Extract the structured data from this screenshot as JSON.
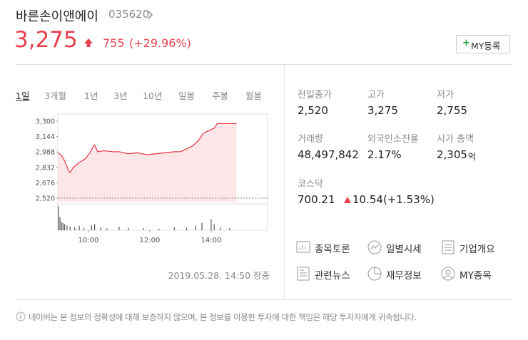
{
  "header": {
    "name": "바른손이앤에이",
    "code": "035620"
  },
  "price": {
    "current": "3,275",
    "change": "755",
    "change_rate": "(+29.96%)"
  },
  "my_button": "MY등록",
  "tabs": [
    "1일",
    "3개월",
    "1년",
    "3년",
    "10년",
    "일봉",
    "주봉",
    "월봉"
  ],
  "chart_data": {
    "type": "line",
    "x": [
      9.0,
      9.1,
      9.15,
      9.25,
      9.35,
      9.4,
      9.5,
      9.7,
      9.9,
      10.05,
      10.15,
      10.2,
      10.3,
      10.5,
      10.8,
      11.0,
      11.3,
      11.6,
      11.9,
      12.2,
      12.5,
      12.8,
      13.0,
      13.2,
      13.4,
      13.6,
      13.75,
      13.9,
      14.1,
      14.2,
      14.5,
      14.83
    ],
    "series": [
      {
        "color": "#e8414e",
        "values": [
          2980,
          2960,
          2940,
          2880,
          2800,
          2780,
          2830,
          2880,
          2920,
          2980,
          3040,
          3060,
          2990,
          3000,
          2990,
          2990,
          2970,
          2980,
          2960,
          2970,
          2980,
          2990,
          2990,
          3020,
          3050,
          3110,
          3180,
          3200,
          3230,
          3275,
          3275,
          3275
        ]
      }
    ],
    "fill_color": "#fde6e8",
    "prev_close": 2520,
    "xlim": [
      9,
      15.84
    ],
    "ylim": [
      2484,
      3372
    ],
    "yticks": [
      {
        "value": 3300,
        "label": "3,300"
      },
      {
        "value": 3144,
        "label": "3,144"
      },
      {
        "value": 2988,
        "label": "2,988"
      },
      {
        "value": 2832,
        "label": "2,832"
      },
      {
        "value": 2676,
        "label": "2,676"
      },
      {
        "value": 2520,
        "label": "2,520"
      }
    ],
    "xticks": [
      {
        "value": 10,
        "label": "10:00"
      },
      {
        "value": 12,
        "label": "12:00"
      },
      {
        "value": 14,
        "label": "14:00"
      }
    ],
    "volume": {
      "x": [
        9.02,
        9.07,
        9.12,
        9.17,
        9.22,
        9.3,
        9.4,
        9.55,
        9.7,
        9.85,
        10.1,
        10.2,
        10.4,
        10.6,
        11.0,
        11.3,
        11.8,
        12.3,
        12.8,
        13.2,
        13.5,
        13.7,
        14.0,
        14.1,
        14.3,
        14.6
      ],
      "values": [
        100,
        55,
        35,
        30,
        25,
        20,
        15,
        12,
        18,
        10,
        20,
        25,
        12,
        8,
        15,
        10,
        8,
        6,
        12,
        10,
        20,
        30,
        45,
        25,
        10,
        8
      ],
      "ylim": [
        0,
        100
      ],
      "color": "#555555"
    }
  },
  "timestamp": "2019.05.28. 14:50 장중",
  "stats": [
    {
      "label": "전일종가",
      "value": "2,520"
    },
    {
      "label": "고가",
      "value": "3,275"
    },
    {
      "label": "저가",
      "value": "2,755"
    },
    {
      "label": "거래량",
      "value": "48,497,842"
    },
    {
      "label": "외국인소진율",
      "value": "2.17%"
    },
    {
      "label": "시가 총액",
      "value": "2,305",
      "unit": "억"
    }
  ],
  "index": {
    "label": "코스닥",
    "value": "700.21",
    "change": "10.54(+1.53%)"
  },
  "links": [
    "종목토론",
    "일별시세",
    "기업개요",
    "관련뉴스",
    "재무정보",
    "MY종목"
  ],
  "notice": "네이버는 본 정보의 정확성에 대해 보증하지 않으며, 본 정보를 이용한 투자에 대한 책임은 해당 투자자에게 귀속됩니다."
}
